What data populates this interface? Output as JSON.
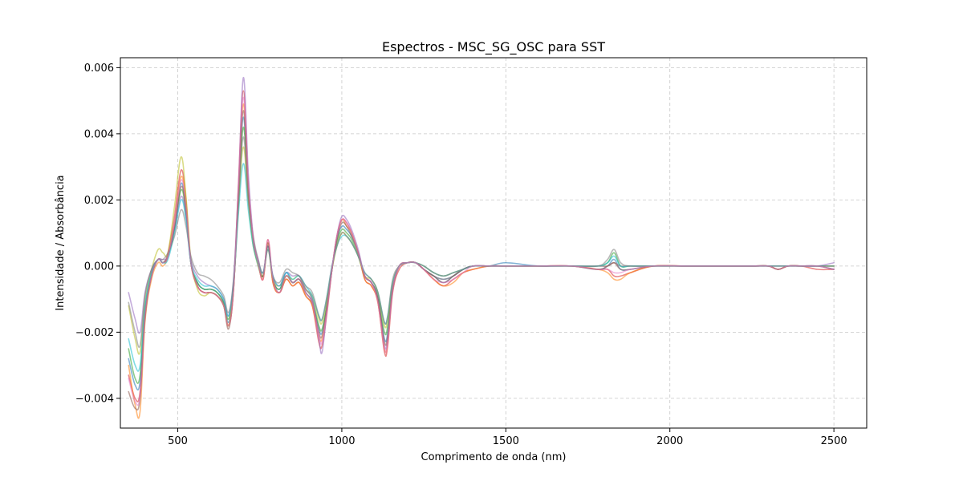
{
  "chart_data": {
    "type": "line",
    "title": "Espectros - MSC_SG_OSC para SST",
    "xlabel": "Comprimento de onda (nm)",
    "ylabel": "Intensidade / Absorbância",
    "xlim": [
      325,
      2600
    ],
    "ylim": [
      -0.0049,
      0.0063
    ],
    "xticks": [
      500,
      1000,
      1500,
      2000,
      2500
    ],
    "xtick_labels": [
      "500",
      "1000",
      "1500",
      "2000",
      "2500"
    ],
    "yticks": [
      -0.004,
      -0.002,
      0.0,
      0.002,
      0.004,
      0.006
    ],
    "ytick_labels": [
      "−0.004",
      "−0.002",
      "0.000",
      "0.002",
      "0.004",
      "0.006"
    ],
    "grid": true,
    "legend": "none",
    "x": [
      350,
      370,
      385,
      400,
      420,
      440,
      455,
      470,
      490,
      510,
      525,
      540,
      560,
      580,
      600,
      620,
      640,
      655,
      670,
      685,
      700,
      715,
      730,
      745,
      760,
      775,
      790,
      810,
      830,
      850,
      870,
      890,
      910,
      930,
      940,
      955,
      970,
      985,
      1000,
      1015,
      1030,
      1050,
      1070,
      1090,
      1110,
      1130,
      1140,
      1155,
      1175,
      1200,
      1225,
      1250,
      1280,
      1310,
      1340,
      1370,
      1400,
      1450,
      1500,
      1600,
      1700,
      1780,
      1810,
      1830,
      1850,
      1880,
      1950,
      2050,
      2150,
      2250,
      2300,
      2330,
      2360,
      2400,
      2450,
      2500
    ],
    "series": [
      {
        "color": "#d62728",
        "values": [
          -0.0033,
          -0.004,
          -0.0038,
          -0.0015,
          -0.0003,
          0.0002,
          0.0001,
          0.0004,
          0.0015,
          0.0029,
          0.002,
          0.0001,
          -0.0006,
          -0.0008,
          -0.0008,
          -0.0009,
          -0.0012,
          -0.0018,
          -0.0007,
          0.0025,
          0.0053,
          0.0025,
          0.0008,
          0.0001,
          -0.0004,
          0.0008,
          -0.0005,
          -0.0008,
          -0.0004,
          -0.0006,
          -0.0005,
          -0.0009,
          -0.0012,
          -0.0023,
          -0.0024,
          -0.0014,
          -0.0001,
          0.0009,
          0.0014,
          0.0013,
          0.001,
          0.0004,
          -0.0004,
          -0.0006,
          -0.0011,
          -0.0026,
          -0.0024,
          -0.0008,
          -0.0001,
          0.0001,
          0.0001,
          -0.0001,
          -0.0004,
          -0.0006,
          -0.0004,
          -0.0002,
          -0.0001,
          0.0,
          0.0,
          0.0,
          0.0,
          -0.0001,
          -0.0001,
          -0.0003,
          -0.0003,
          -0.0002,
          0.0,
          0.0,
          0.0,
          0.0,
          0.0,
          -0.0001,
          0.0,
          0.0,
          -0.0001,
          -0.0001
        ]
      },
      {
        "color": "#1f77b4",
        "values": [
          -0.0028,
          -0.0036,
          -0.0035,
          -0.0014,
          -0.0003,
          0.0002,
          0.0001,
          0.0003,
          0.0012,
          0.0025,
          0.0017,
          0.0001,
          -0.0005,
          -0.0007,
          -0.0007,
          -0.0008,
          -0.0011,
          -0.0017,
          -0.0006,
          0.0021,
          0.0045,
          0.0022,
          0.0007,
          0.0001,
          -0.0003,
          0.0006,
          -0.0004,
          -0.0007,
          -0.0002,
          -0.0005,
          -0.0004,
          -0.0008,
          -0.0011,
          -0.0019,
          -0.002,
          -0.0012,
          -0.0001,
          0.0008,
          0.0012,
          0.0011,
          0.0009,
          0.0004,
          -0.0003,
          -0.0005,
          -0.001,
          -0.0022,
          -0.002,
          -0.0006,
          0.0,
          0.0001,
          0.0001,
          -0.0001,
          -0.0003,
          -0.0005,
          -0.0003,
          -0.0001,
          0.0,
          0.0,
          0.0001,
          0.0,
          0.0,
          -0.0001,
          0.0,
          0.0002,
          -0.0001,
          -0.0001,
          0.0,
          0.0,
          0.0,
          0.0,
          0.0,
          -0.0001,
          0.0,
          0.0,
          0.0,
          -0.0001
        ]
      },
      {
        "color": "#2ca02c",
        "values": [
          -0.0025,
          -0.0034,
          -0.0033,
          -0.0013,
          -0.0002,
          0.0002,
          0.0001,
          0.0003,
          0.0011,
          0.0023,
          0.0016,
          0.0001,
          -0.0005,
          -0.0007,
          -0.0007,
          -0.0008,
          -0.0011,
          -0.0016,
          -0.0006,
          0.0019,
          0.0042,
          0.0021,
          0.0007,
          0.0,
          -0.0003,
          0.0006,
          -0.0004,
          -0.0007,
          -0.0003,
          -0.0005,
          -0.0004,
          -0.0007,
          -0.001,
          -0.0018,
          -0.0019,
          -0.0011,
          -0.0001,
          0.0007,
          0.0011,
          0.001,
          0.0008,
          0.0003,
          -0.0003,
          -0.0005,
          -0.0009,
          -0.002,
          -0.0018,
          -0.0006,
          0.0,
          0.0001,
          0.0001,
          -0.0001,
          -0.0003,
          -0.0004,
          -0.0003,
          -0.0001,
          0.0,
          0.0,
          0.0,
          0.0,
          0.0,
          0.0,
          0.0001,
          0.0004,
          0.0,
          0.0,
          0.0,
          0.0,
          0.0,
          0.0,
          0.0,
          -0.0001,
          0.0,
          0.0,
          0.0,
          0.0
        ]
      },
      {
        "color": "#ff7f0e",
        "values": [
          -0.003,
          -0.0042,
          -0.0044,
          -0.0017,
          -0.0004,
          0.0001,
          0.0,
          0.0003,
          0.0013,
          0.0027,
          0.0019,
          0.0001,
          -0.0006,
          -0.0008,
          -0.0008,
          -0.0009,
          -0.0012,
          -0.0018,
          -0.0007,
          0.0023,
          0.0049,
          0.0024,
          0.0008,
          0.0001,
          -0.0004,
          0.0007,
          -0.0005,
          -0.0008,
          -0.0004,
          -0.0006,
          -0.0005,
          -0.0009,
          -0.0012,
          -0.0021,
          -0.0022,
          -0.0013,
          -0.0001,
          0.0009,
          0.0014,
          0.0012,
          0.001,
          0.0004,
          -0.0004,
          -0.0006,
          -0.0011,
          -0.0025,
          -0.0023,
          -0.0007,
          0.0,
          0.0001,
          0.0001,
          -0.0001,
          -0.0004,
          -0.0006,
          -0.0005,
          -0.0002,
          -0.0001,
          0.0,
          0.0,
          0.0,
          0.0,
          -0.0001,
          -0.0002,
          -0.0004,
          -0.0004,
          -0.0002,
          0.0,
          0.0,
          0.0,
          0.0,
          0.0,
          -0.0001,
          0.0,
          0.0,
          0.0,
          0.0
        ]
      },
      {
        "color": "#bcbd22",
        "values": [
          -0.0012,
          -0.0022,
          -0.0026,
          -0.001,
          -0.0001,
          0.0005,
          0.0004,
          0.0004,
          0.0018,
          0.0033,
          0.0021,
          0.0002,
          -0.0007,
          -0.0009,
          -0.0008,
          -0.0009,
          -0.0012,
          -0.0018,
          -0.0006,
          0.0018,
          0.0036,
          0.0019,
          0.0006,
          0.0001,
          -0.0003,
          0.0005,
          -0.0004,
          -0.0006,
          -0.0003,
          -0.0004,
          -0.0003,
          -0.0007,
          -0.0009,
          -0.0016,
          -0.0017,
          -0.001,
          -0.0001,
          0.0006,
          0.001,
          0.0009,
          0.0007,
          0.0003,
          -0.0003,
          -0.0004,
          -0.0008,
          -0.0018,
          -0.0016,
          -0.0005,
          0.0,
          0.0001,
          0.0001,
          0.0,
          -0.0002,
          -0.0003,
          -0.0002,
          -0.0001,
          0.0,
          0.0,
          0.0,
          0.0,
          0.0,
          0.0,
          0.0,
          0.0001,
          0.0,
          0.0,
          0.0,
          0.0,
          0.0,
          0.0,
          0.0,
          0.0,
          0.0,
          0.0,
          0.0,
          0.0
        ]
      },
      {
        "color": "#9467bd",
        "values": [
          -0.0008,
          -0.0016,
          -0.002,
          -0.0008,
          -0.0001,
          0.0002,
          0.0002,
          0.0003,
          0.0011,
          0.0021,
          0.0015,
          0.0002,
          -0.0003,
          -0.0005,
          -0.0006,
          -0.0007,
          -0.001,
          -0.0015,
          -0.0004,
          0.0024,
          0.0057,
          0.0028,
          0.0009,
          0.0002,
          -0.0002,
          0.0006,
          -0.0003,
          -0.0006,
          -0.0002,
          -0.0003,
          -0.0003,
          -0.0007,
          -0.001,
          -0.0022,
          -0.0026,
          -0.0013,
          -0.0001,
          0.0009,
          0.0015,
          0.0014,
          0.0011,
          0.0005,
          -0.0003,
          -0.0005,
          -0.001,
          -0.0024,
          -0.0022,
          -0.0007,
          0.0,
          0.0001,
          0.0001,
          -0.0001,
          -0.0003,
          -0.0004,
          -0.0003,
          -0.0001,
          0.0,
          0.0,
          0.0,
          0.0,
          0.0,
          0.0,
          0.0,
          0.0001,
          0.0,
          0.0,
          0.0,
          0.0,
          0.0,
          0.0,
          0.0,
          0.0,
          0.0,
          0.0,
          0.0,
          0.0001
        ]
      },
      {
        "color": "#8c564b",
        "values": [
          -0.0038,
          -0.0043,
          -0.004,
          -0.0016,
          -0.0003,
          0.0002,
          0.0001,
          0.0003,
          0.0012,
          0.0024,
          0.0017,
          0.0001,
          -0.0006,
          -0.0008,
          -0.0008,
          -0.0009,
          -0.0012,
          -0.0019,
          -0.0007,
          0.0022,
          0.0047,
          0.0023,
          0.0008,
          0.0001,
          -0.0003,
          0.0007,
          -0.0004,
          -0.0008,
          -0.0003,
          -0.0005,
          -0.0004,
          -0.0008,
          -0.0011,
          -0.002,
          -0.0021,
          -0.0012,
          -0.0001,
          0.0008,
          0.0013,
          0.0012,
          0.0009,
          0.0004,
          -0.0003,
          -0.0005,
          -0.001,
          -0.0023,
          -0.0021,
          -0.0007,
          0.0,
          0.0001,
          0.0001,
          -0.0001,
          -0.0003,
          -0.0005,
          -0.0003,
          -0.0001,
          0.0,
          0.0,
          0.0,
          0.0,
          0.0,
          -0.0001,
          0.0,
          0.0001,
          -0.0001,
          -0.0001,
          0.0,
          0.0,
          0.0,
          0.0,
          0.0,
          -0.0001,
          0.0,
          0.0,
          0.0,
          -0.0001
        ]
      },
      {
        "color": "#17becf",
        "values": [
          -0.0022,
          -0.003,
          -0.003,
          -0.0012,
          -0.0002,
          0.0002,
          0.0001,
          0.0002,
          0.001,
          0.002,
          0.0014,
          0.0001,
          -0.0004,
          -0.0006,
          -0.0006,
          -0.0007,
          -0.001,
          -0.0015,
          -0.0005,
          0.0016,
          0.0031,
          0.0017,
          0.0006,
          0.0001,
          -0.0002,
          0.0005,
          -0.0003,
          -0.0006,
          -0.0002,
          -0.0004,
          -0.0003,
          -0.0006,
          -0.0009,
          -0.0015,
          -0.0016,
          -0.0009,
          0.0,
          0.0006,
          0.0009,
          0.0009,
          0.0007,
          0.0003,
          -0.0002,
          -0.0004,
          -0.0008,
          -0.0017,
          -0.0015,
          -0.0005,
          0.0,
          0.0001,
          0.0001,
          0.0,
          -0.0002,
          -0.0003,
          -0.0002,
          -0.0001,
          0.0,
          0.0,
          0.0,
          0.0,
          0.0,
          0.0,
          0.0001,
          0.0003,
          0.0,
          0.0,
          0.0,
          0.0,
          0.0,
          0.0,
          0.0,
          0.0,
          0.0,
          0.0,
          0.0,
          0.0
        ]
      },
      {
        "color": "#7f7f7f",
        "values": [
          -0.0011,
          -0.002,
          -0.0024,
          -0.0009,
          -0.0001,
          0.0002,
          0.0002,
          0.0004,
          0.0009,
          0.0017,
          0.0012,
          0.0003,
          -0.0002,
          -0.0003,
          -0.0004,
          -0.0006,
          -0.0009,
          -0.0014,
          -0.0004,
          0.0019,
          0.0039,
          0.002,
          0.0009,
          0.0002,
          -0.0002,
          0.0005,
          -0.0003,
          -0.0005,
          -0.0001,
          -0.0002,
          -0.0003,
          -0.0006,
          -0.0008,
          -0.0015,
          -0.0016,
          -0.0009,
          0.0,
          0.0006,
          0.001,
          0.0009,
          0.0007,
          0.0003,
          -0.0002,
          -0.0004,
          -0.0008,
          -0.0017,
          -0.0015,
          -0.0004,
          0.0,
          0.0001,
          0.0001,
          0.0,
          -0.0002,
          -0.0003,
          -0.0002,
          -0.0001,
          0.0,
          0.0,
          0.0,
          0.0,
          0.0,
          0.0,
          0.0002,
          0.0005,
          0.0001,
          0.0,
          0.0,
          0.0,
          0.0,
          0.0,
          0.0,
          0.0,
          0.0,
          0.0,
          0.0,
          0.0
        ]
      },
      {
        "color": "#e377c2",
        "values": [
          -0.0034,
          -0.0041,
          -0.0039,
          -0.0015,
          -0.0003,
          0.0002,
          0.0001,
          0.0003,
          0.0013,
          0.0026,
          0.0018,
          0.0001,
          -0.0006,
          -0.0008,
          -0.0008,
          -0.0009,
          -0.0012,
          -0.0018,
          -0.0007,
          0.0024,
          0.0051,
          0.0025,
          0.0008,
          0.0001,
          -0.0004,
          0.0008,
          -0.0004,
          -0.0008,
          -0.0003,
          -0.0005,
          -0.0004,
          -0.0008,
          -0.0011,
          -0.0021,
          -0.0023,
          -0.0013,
          -0.0001,
          0.0009,
          0.0014,
          0.0013,
          0.001,
          0.0004,
          -0.0003,
          -0.0005,
          -0.0011,
          -0.0025,
          -0.0023,
          -0.0007,
          0.0,
          0.0001,
          0.0001,
          -0.0001,
          -0.0004,
          -0.0005,
          -0.0004,
          -0.0002,
          0.0,
          0.0,
          0.0,
          0.0,
          0.0,
          -0.0001,
          -0.0001,
          -0.0002,
          -0.0002,
          -0.0001,
          0.0,
          0.0,
          0.0,
          0.0,
          0.0,
          -0.0001,
          0.0,
          0.0,
          0.0,
          -0.0001
        ]
      }
    ]
  }
}
